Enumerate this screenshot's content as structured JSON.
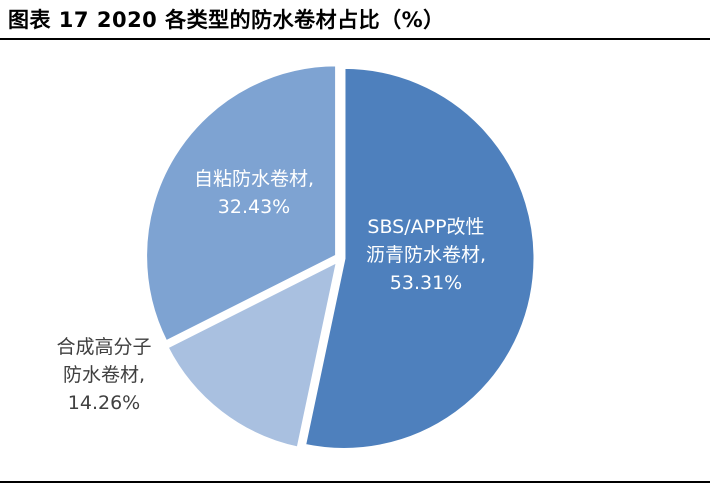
{
  "title": "图表 17 2020 各类型的防水卷材占比（%）",
  "chart_data": {
    "type": "pie",
    "title": "图表 17 2020 各类型的防水卷材占比（%）",
    "slices": [
      {
        "label_lines": [
          "SBS/APP改性",
          "沥青防水卷材,",
          "53.31%"
        ],
        "value": 53.31,
        "color": "#4e80bd",
        "label_color": "#ffffff"
      },
      {
        "label_lines": [
          "合成高分子",
          "防水卷材,",
          "14.26%"
        ],
        "value": 14.26,
        "color": "#a9c0e0",
        "label_color": "#404040"
      },
      {
        "label_lines": [
          "自粘防水卷材,",
          "32.43%"
        ],
        "value": 32.43,
        "color": "#7ea3d2",
        "label_color": "#ffffff"
      }
    ],
    "start_angle_deg": 0,
    "direction": "clockwise",
    "legend": "none"
  }
}
